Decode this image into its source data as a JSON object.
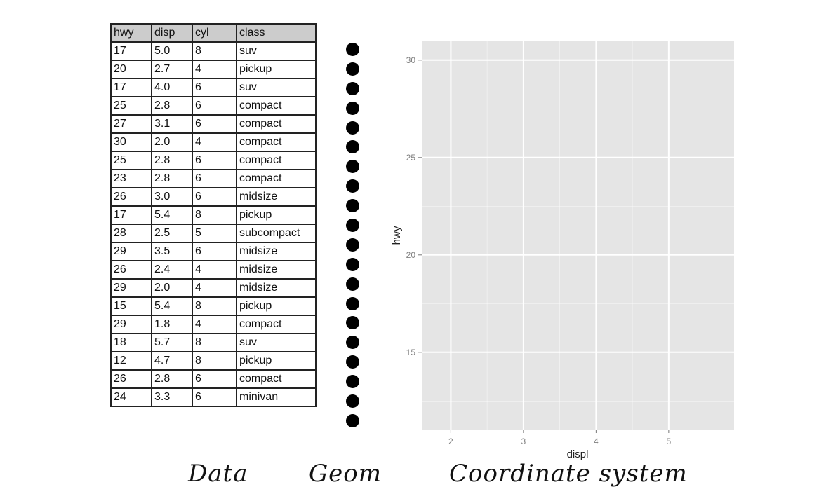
{
  "table": {
    "headers": [
      "hwy",
      "disp",
      "cyl",
      "class"
    ],
    "rows": [
      [
        "17",
        "5.0",
        "8",
        "suv"
      ],
      [
        "20",
        "2.7",
        "4",
        "pickup"
      ],
      [
        "17",
        "4.0",
        "6",
        "suv"
      ],
      [
        "25",
        "2.8",
        "6",
        "compact"
      ],
      [
        "27",
        "3.1",
        "6",
        "compact"
      ],
      [
        "30",
        "2.0",
        "4",
        "compact"
      ],
      [
        "25",
        "2.8",
        "6",
        "compact"
      ],
      [
        "23",
        "2.8",
        "6",
        "compact"
      ],
      [
        "26",
        "3.0",
        "6",
        "midsize"
      ],
      [
        "17",
        "5.4",
        "8",
        "pickup"
      ],
      [
        "28",
        "2.5",
        "5",
        "subcompact"
      ],
      [
        "29",
        "3.5",
        "6",
        "midsize"
      ],
      [
        "26",
        "2.4",
        "4",
        "midsize"
      ],
      [
        "29",
        "2.0",
        "4",
        "midsize"
      ],
      [
        "15",
        "5.4",
        "8",
        "pickup"
      ],
      [
        "29",
        "1.8",
        "4",
        "compact"
      ],
      [
        "18",
        "5.7",
        "8",
        "suv"
      ],
      [
        "12",
        "4.7",
        "8",
        "pickup"
      ],
      [
        "26",
        "2.8",
        "6",
        "compact"
      ],
      [
        "24",
        "3.3",
        "6",
        "minivan"
      ]
    ]
  },
  "geom": {
    "shape": "filled-circle",
    "count": 20,
    "color": "#000000"
  },
  "coord": {
    "xlabel": "displ",
    "ylabel": "hwy",
    "xlim": [
      1.6,
      5.9
    ],
    "ylim": [
      11,
      31
    ],
    "xticks": [
      2,
      3,
      4,
      5
    ],
    "yticks": [
      15,
      20,
      25,
      30
    ],
    "panel_color": "#e5e5e5",
    "grid_color": "#ffffff"
  },
  "captions": {
    "data": "Data",
    "geom": "Geom",
    "coord": "Coordinate system"
  }
}
